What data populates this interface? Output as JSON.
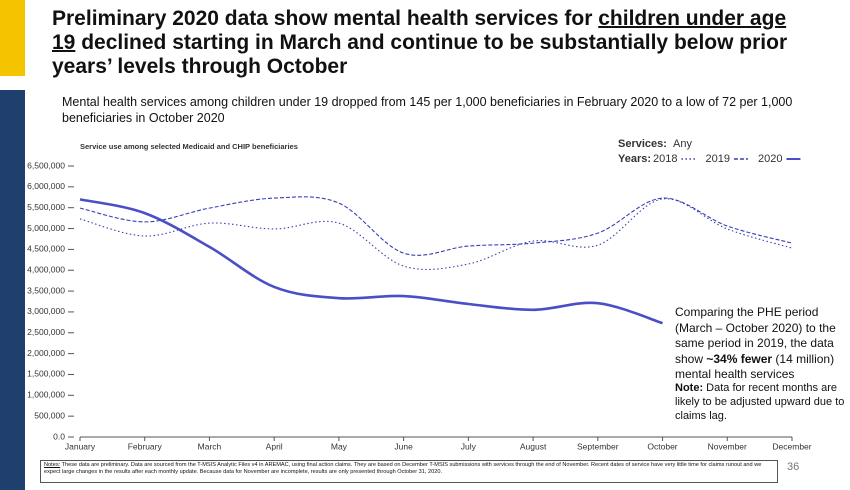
{
  "header": {
    "title_before": "Preliminary 2020 data show mental health services for ",
    "title_underlined": "children under age 19",
    "title_after": " declined starting in March and continue to be substantially below prior years’ levels through October",
    "subtitle": "Mental health services among children under 19 dropped from 145 per 1,000 beneficiaries in February 2020 to a low of 72 per 1,000 beneficiaries in October 2020"
  },
  "chart_data": {
    "type": "line",
    "title": "Service use among selected Medicaid and CHIP beneficiaries",
    "legend_services_label": "Services:",
    "legend_services_value": "Any",
    "legend_years_label": "Years:",
    "categories": [
      "January",
      "February",
      "March",
      "April",
      "May",
      "June",
      "July",
      "August",
      "September",
      "October",
      "November",
      "December"
    ],
    "series": [
      {
        "name": "2018",
        "color": "#3a3fb2",
        "dash": "dotted",
        "values": [
          5230000,
          4820000,
          5130000,
          4990000,
          5130000,
          4100000,
          4150000,
          4700000,
          4600000,
          5710000,
          4990000,
          4530000
        ]
      },
      {
        "name": "2019",
        "color": "#3a3fb2",
        "dash": "dashed",
        "values": [
          5490000,
          5160000,
          5490000,
          5730000,
          5610000,
          4410000,
          4580000,
          4650000,
          4890000,
          5730000,
          5060000,
          4650000
        ]
      },
      {
        "name": "2020",
        "color": "#4b4fc6",
        "dash": "solid",
        "values": [
          5700000,
          5370000,
          4560000,
          3600000,
          3330000,
          3380000,
          3190000,
          3050000,
          3210000,
          2730000,
          null,
          null
        ]
      }
    ],
    "ylim": [
      0,
      6500000
    ],
    "yticks": [
      {
        "value": 0,
        "label": "0.0"
      },
      {
        "value": 500000,
        "label": "500,000"
      },
      {
        "value": 1000000,
        "label": "1,000,000"
      },
      {
        "value": 1500000,
        "label": "1,500,000"
      },
      {
        "value": 2000000,
        "label": "2,000,000"
      },
      {
        "value": 2500000,
        "label": "2,500,000"
      },
      {
        "value": 3000000,
        "label": "3,000,000"
      },
      {
        "value": 3500000,
        "label": "3,500,000"
      },
      {
        "value": 4000000,
        "label": "4,000,000"
      },
      {
        "value": 4500000,
        "label": "4,500,000"
      },
      {
        "value": 5000000,
        "label": "5,000,000"
      },
      {
        "value": 5500000,
        "label": "5,500,000"
      },
      {
        "value": 6000000,
        "label": "6,000,000"
      },
      {
        "value": 6500000,
        "label": "6,500,000"
      }
    ],
    "grid": false
  },
  "annotation": {
    "text_before": "Comparing the PHE period (March – October 2020) to the same period in 2019, the data show ",
    "text_bold": "~34% fewer",
    "text_after": " (14 million) mental health services",
    "note_label": "Note:",
    "note_text": " Data for recent months are likely to be adjusted upward due to claims lag."
  },
  "footer": {
    "notes_label": "Notes:",
    "notes_text": " These data are preliminary. Data are sourced from the T-MSIS Analytic Files v4 in AREMAC, using final action claims. They are based on December T-MSIS submissions with services through the end of November. Recent dates of service have very little time for claims runout and we expect large changes in the results after each monthly update. Because data for November are incomplete, results are only presented through October 31, 2020.",
    "page_number": "36"
  }
}
